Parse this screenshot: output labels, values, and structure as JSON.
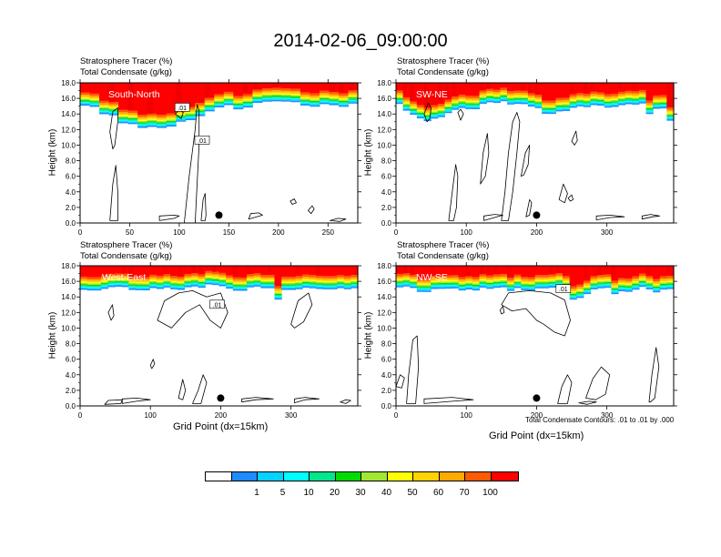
{
  "title": "2014-02-06_09:00:00",
  "colors": {
    "scale": [
      "#ffffff",
      "#1e8cff",
      "#00d3ff",
      "#00ffff",
      "#00e68c",
      "#00dc00",
      "#a0e632",
      "#ffff00",
      "#ffd200",
      "#ffaa00",
      "#ff5a00",
      "#ff0000"
    ],
    "condensate_contour": "#000000",
    "marker": "#000000"
  },
  "chart_data": [
    {
      "type": "heatmap",
      "panel": "South-North",
      "section_label": "South-North",
      "title_line1": "Stratosphere Tracer   (%)",
      "title_line2": "Total Condensate   (g/kg)",
      "ylabel": "Height (km)",
      "xlabel": "",
      "xlim": [
        0,
        280
      ],
      "ylim": [
        0,
        18
      ],
      "xticks": [
        0,
        50,
        100,
        150,
        200,
        250
      ],
      "yticks": [
        0,
        2,
        4,
        6,
        8,
        10,
        12,
        14,
        16,
        18
      ],
      "marker_x": 140,
      "contour_labels": [
        {
          "text": ".01",
          "x": 103,
          "y": 14.8
        },
        {
          "text": ".01",
          "x": 123,
          "y": 10.6
        }
      ],
      "tracer_base_km": [
        15.2,
        14.8,
        14.2,
        13.6,
        13.0,
        12.6,
        12.3,
        12.1,
        12.1,
        12.5,
        13.0,
        13.4,
        13.7,
        14.2,
        14.6,
        14.9,
        14.4,
        15.0,
        15.3,
        15.5,
        15.5,
        15.4,
        15.3,
        15.2,
        15.1,
        15.2,
        15.1,
        15.0,
        15.1
      ],
      "condensate_regions": [
        [
          [
            30,
            0.3
          ],
          [
            33,
            5
          ],
          [
            36,
            7.4
          ],
          [
            38,
            4
          ],
          [
            38,
            0.3
          ]
        ],
        [
          [
            30,
            11.7
          ],
          [
            33,
            14.3
          ],
          [
            38,
            14.8
          ],
          [
            38,
            13
          ],
          [
            35,
            10
          ],
          [
            33,
            9.5
          ]
        ],
        [
          [
            105,
            0
          ],
          [
            110,
            6
          ],
          [
            113,
            9
          ],
          [
            116,
            12
          ],
          [
            118,
            15.2
          ],
          [
            120,
            14.5
          ],
          [
            120,
            10
          ],
          [
            118,
            5
          ],
          [
            116,
            0
          ]
        ],
        [
          [
            96,
            14
          ],
          [
            100,
            14.5
          ],
          [
            104,
            14.2
          ],
          [
            102,
            13.4
          ]
        ],
        [
          [
            122,
            0.3
          ],
          [
            124,
            3
          ],
          [
            126,
            3.8
          ],
          [
            127,
            1
          ],
          [
            126,
            0.3
          ]
        ],
        [
          [
            80,
            0.3
          ],
          [
            95,
            0.6
          ],
          [
            100,
            0.9
          ],
          [
            95,
            1
          ],
          [
            80,
            0.9
          ]
        ],
        [
          [
            170,
            0.5
          ],
          [
            178,
            0.8
          ],
          [
            184,
            1
          ],
          [
            180,
            1.3
          ],
          [
            172,
            1.2
          ]
        ],
        [
          [
            230,
            1.6
          ],
          [
            234,
            2.2
          ],
          [
            236,
            1.8
          ],
          [
            233,
            1.2
          ]
        ],
        [
          [
            252,
            0.3
          ],
          [
            260,
            0.6
          ],
          [
            268,
            0.5
          ],
          [
            262,
            0.2
          ]
        ],
        [
          [
            212,
            2.8
          ],
          [
            216,
            3.1
          ],
          [
            218,
            2.6
          ],
          [
            214,
            2.4
          ]
        ]
      ]
    },
    {
      "type": "heatmap",
      "panel": "SW-NE",
      "section_label": "SW-NE",
      "title_line1": "Stratosphere Tracer   (%)",
      "title_line2": "Total Condensate   (g/kg)",
      "ylabel": "Height (km)",
      "xlabel": "",
      "xlim": [
        0,
        395
      ],
      "ylim": [
        0,
        18
      ],
      "xticks": [
        0,
        100,
        200,
        300
      ],
      "yticks": [
        0,
        2,
        4,
        6,
        8,
        10,
        12,
        14,
        16,
        18
      ],
      "marker_x": 200,
      "contour_labels": [],
      "tracer_base_km": [
        15.4,
        14.6,
        13.8,
        13.3,
        13.1,
        13.3,
        13.8,
        14.3,
        14.5,
        14.9,
        14.6,
        14.8,
        15.1,
        15.3,
        15.4,
        15.4,
        15.3,
        15.2,
        15.1,
        14.8,
        14.6,
        14.2,
        14.0,
        14.2,
        14.6,
        14.9,
        15.0,
        15.0,
        15.1,
        15.0,
        14.9,
        15.1,
        15.3,
        15.4,
        15.3,
        15.1,
        14.2,
        14.6,
        14.9,
        13.0
      ],
      "condensate_regions": [
        [
          [
            40,
            14
          ],
          [
            46,
            15.4
          ],
          [
            50,
            14.8
          ],
          [
            48,
            13.4
          ],
          [
            44,
            13
          ]
        ],
        [
          [
            75,
            0.3
          ],
          [
            80,
            4
          ],
          [
            85,
            7.5
          ],
          [
            88,
            6
          ],
          [
            86,
            2
          ],
          [
            82,
            0.3
          ]
        ],
        [
          [
            88,
            14.2
          ],
          [
            92,
            14.6
          ],
          [
            96,
            14
          ],
          [
            92,
            13.2
          ]
        ],
        [
          [
            150,
            0.3
          ],
          [
            155,
            4
          ],
          [
            160,
            9
          ],
          [
            166,
            13
          ],
          [
            172,
            14.2
          ],
          [
            176,
            13
          ],
          [
            172,
            9
          ],
          [
            166,
            4
          ],
          [
            160,
            0.3
          ]
        ],
        [
          [
            120,
            5
          ],
          [
            124,
            9
          ],
          [
            130,
            11.5
          ],
          [
            132,
            9
          ],
          [
            127,
            6
          ]
        ],
        [
          [
            178,
            6
          ],
          [
            184,
            9
          ],
          [
            190,
            10
          ],
          [
            188,
            7.5
          ],
          [
            182,
            6.2
          ]
        ],
        [
          [
            185,
            0.8
          ],
          [
            190,
            3
          ],
          [
            193,
            2.6
          ],
          [
            190,
            1
          ]
        ],
        [
          [
            232,
            3
          ],
          [
            238,
            5
          ],
          [
            244,
            3.8
          ],
          [
            240,
            2.6
          ]
        ],
        [
          [
            250,
            10.5
          ],
          [
            256,
            11.8
          ],
          [
            258,
            10.6
          ],
          [
            254,
            10
          ]
        ],
        [
          [
            125,
            0.3
          ],
          [
            140,
            0.7
          ],
          [
            152,
            1
          ],
          [
            140,
            1.1
          ],
          [
            125,
            0.9
          ]
        ],
        [
          [
            285,
            0.4
          ],
          [
            305,
            0.7
          ],
          [
            325,
            0.8
          ],
          [
            305,
            1
          ],
          [
            285,
            0.9
          ]
        ],
        [
          [
            350,
            0.5
          ],
          [
            365,
            0.8
          ],
          [
            375,
            0.9
          ],
          [
            362,
            1.1
          ],
          [
            350,
            0.9
          ]
        ],
        [
          [
            245,
            3.2
          ],
          [
            250,
            3.6
          ],
          [
            252,
            3
          ],
          [
            248,
            2.8
          ]
        ]
      ]
    },
    {
      "type": "heatmap",
      "panel": "West-East",
      "section_label": "West-East",
      "title_line1": "Stratosphere Tracer   (%)",
      "title_line2": "Total Condensate   (g/kg)",
      "ylabel": "Height (km)",
      "xlabel": "Grid Point (dx=15km)",
      "xlim": [
        0,
        395
      ],
      "ylim": [
        0,
        18
      ],
      "xticks": [
        0,
        100,
        200,
        300
      ],
      "yticks": [
        0,
        2,
        4,
        6,
        8,
        10,
        12,
        14,
        16,
        18
      ],
      "marker_x": 200,
      "contour_labels": [
        {
          "text": ".01",
          "x": 195,
          "y": 13.0
        }
      ],
      "tracer_base_km": [
        15.0,
        14.8,
        14.9,
        15.0,
        15.1,
        15.2,
        15.1,
        15.0,
        14.9,
        15.0,
        15.1,
        15.2,
        15.3,
        15.2,
        15.1,
        15.0,
        15.2,
        15.3,
        15.4,
        15.3,
        15.2,
        15.1,
        15.0,
        14.9,
        15.0,
        15.1,
        15.2,
        15.3,
        13.8,
        15.0,
        15.1,
        15.2,
        15.1,
        15.0,
        15.1,
        15.0,
        15.1,
        15.2,
        15.1,
        15.1
      ],
      "condensate_regions": [
        [
          [
            110,
            11
          ],
          [
            120,
            13.5
          ],
          [
            140,
            14.5
          ],
          [
            160,
            14.8
          ],
          [
            180,
            14
          ],
          [
            200,
            14.5
          ],
          [
            210,
            12
          ],
          [
            200,
            10
          ],
          [
            185,
            11
          ],
          [
            170,
            13
          ],
          [
            150,
            12
          ],
          [
            130,
            10
          ]
        ],
        [
          [
            40,
            12
          ],
          [
            46,
            13
          ],
          [
            48,
            11.6
          ],
          [
            44,
            11
          ]
        ],
        [
          [
            300,
            10.5
          ],
          [
            310,
            13.5
          ],
          [
            325,
            14.5
          ],
          [
            330,
            13
          ],
          [
            318,
            10.8
          ],
          [
            305,
            10
          ]
        ],
        [
          [
            35,
            0.2
          ],
          [
            40,
            0.7
          ],
          [
            60,
            0.8
          ],
          [
            58,
            0.3
          ]
        ],
        [
          [
            60,
            0.3
          ],
          [
            80,
            0.6
          ],
          [
            100,
            0.8
          ],
          [
            80,
            1
          ],
          [
            60,
            0.9
          ]
        ],
        [
          [
            160,
            0.3
          ],
          [
            168,
            2
          ],
          [
            175,
            4
          ],
          [
            180,
            3
          ],
          [
            172,
            0.3
          ]
        ],
        [
          [
            140,
            1
          ],
          [
            146,
            3.4
          ],
          [
            150,
            2
          ],
          [
            146,
            0.8
          ]
        ],
        [
          [
            230,
            0.5
          ],
          [
            250,
            0.8
          ],
          [
            275,
            0.9
          ],
          [
            250,
            1.1
          ],
          [
            230,
            0.9
          ]
        ],
        [
          [
            305,
            0.4
          ],
          [
            320,
            0.8
          ],
          [
            340,
            0.9
          ],
          [
            320,
            1.1
          ],
          [
            305,
            0.9
          ]
        ],
        [
          [
            370,
            0.5
          ],
          [
            378,
            0.8
          ],
          [
            385,
            0.7
          ],
          [
            378,
            0.3
          ]
        ],
        [
          [
            100,
            5.2
          ],
          [
            104,
            6
          ],
          [
            106,
            5.4
          ],
          [
            102,
            4.8
          ]
        ]
      ]
    },
    {
      "type": "heatmap",
      "panel": "NW-SE",
      "section_label": "NW-SE",
      "title_line1": "Stratosphere Tracer   (%)",
      "title_line2": "Total Condensate   (g/kg)",
      "ylabel": "Height (km)",
      "xlabel": "Grid Point (dx=15km)",
      "xlim": [
        0,
        395
      ],
      "ylim": [
        0,
        18
      ],
      "xticks": [
        0,
        100,
        200,
        300
      ],
      "yticks": [
        0,
        2,
        4,
        6,
        8,
        10,
        12,
        14,
        16,
        18
      ],
      "marker_x": 200,
      "contour_labels": [
        {
          "text": ".01",
          "x": 238,
          "y": 15.0
        }
      ],
      "note": "Total Condensate Contours: .01 to .01 by .000",
      "tracer_base_km": [
        15.3,
        15.1,
        14.9,
        14.7,
        14.8,
        14.9,
        15.0,
        15.1,
        15.2,
        15.0,
        14.9,
        15.0,
        15.1,
        15.2,
        15.1,
        15.0,
        14.9,
        15.0,
        15.1,
        15.0,
        14.9,
        15.0,
        15.1,
        15.2,
        14.8,
        13.6,
        14.0,
        14.6,
        14.8,
        14.9,
        15.0,
        14.6,
        14.9,
        14.8,
        15.0,
        15.1,
        15.0,
        14.8,
        15.0,
        15.1
      ],
      "condensate_regions": [
        [
          [
            150,
            13
          ],
          [
            160,
            14.5
          ],
          [
            190,
            14.8
          ],
          [
            220,
            14.5
          ],
          [
            240,
            13.6
          ],
          [
            248,
            11
          ],
          [
            240,
            9
          ],
          [
            225,
            9.5
          ],
          [
            210,
            10.5
          ],
          [
            200,
            11
          ],
          [
            185,
            12.5
          ],
          [
            165,
            12.2
          ]
        ],
        [
          [
            15,
            0.3
          ],
          [
            18,
            4
          ],
          [
            24,
            8.5
          ],
          [
            30,
            9
          ],
          [
            32,
            5
          ],
          [
            28,
            0.3
          ]
        ],
        [
          [
            0,
            2.5
          ],
          [
            6,
            4
          ],
          [
            12,
            3.6
          ],
          [
            8,
            2.3
          ]
        ],
        [
          [
            230,
            0.3
          ],
          [
            236,
            2.5
          ],
          [
            244,
            4
          ],
          [
            250,
            3
          ],
          [
            244,
            0.3
          ]
        ],
        [
          [
            270,
            1
          ],
          [
            280,
            3.5
          ],
          [
            292,
            5
          ],
          [
            304,
            4
          ],
          [
            298,
            1.5
          ],
          [
            284,
            0.8
          ]
        ],
        [
          [
            360,
            0.5
          ],
          [
            364,
            4
          ],
          [
            370,
            7.5
          ],
          [
            374,
            5
          ],
          [
            368,
            1
          ],
          [
            362,
            0.5
          ]
        ],
        [
          [
            40,
            0.3
          ],
          [
            80,
            0.6
          ],
          [
            110,
            0.8
          ],
          [
            80,
            1.1
          ],
          [
            40,
            0.9
          ]
        ],
        [
          [
            260,
            0.4
          ],
          [
            275,
            0.6
          ],
          [
            285,
            0.5
          ],
          [
            272,
            0.2
          ]
        ],
        [
          [
            148,
            12.3
          ],
          [
            152,
            12.8
          ],
          [
            154,
            12
          ],
          [
            150,
            11.8
          ]
        ]
      ]
    }
  ],
  "colorbar": {
    "labels": [
      "1",
      "5",
      "10",
      "20",
      "30",
      "40",
      "50",
      "60",
      "70",
      "100"
    ]
  }
}
